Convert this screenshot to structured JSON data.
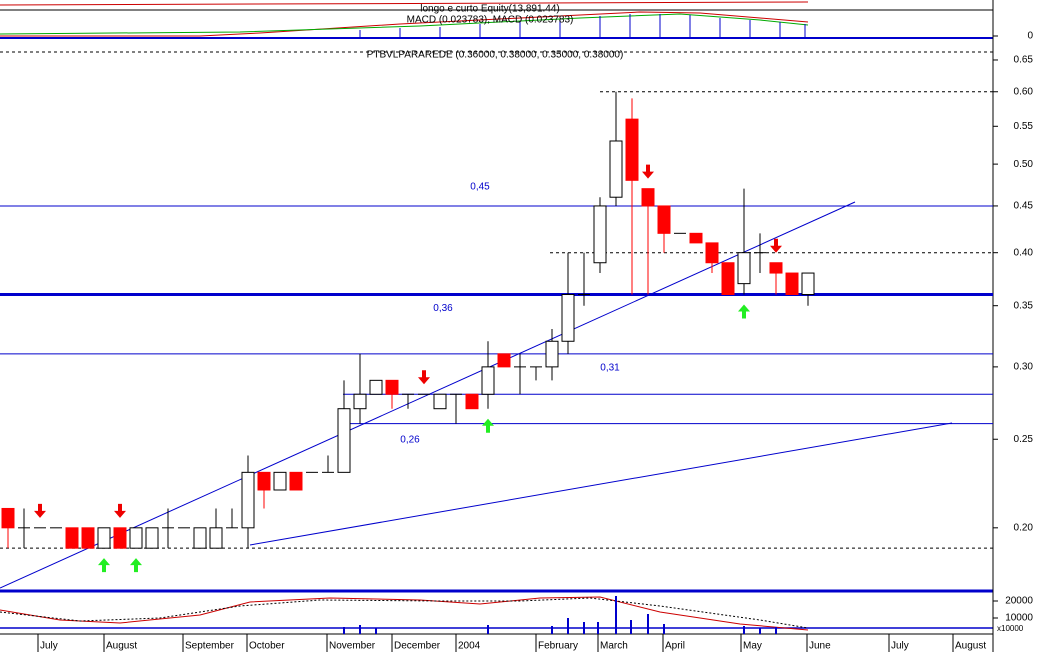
{
  "chart_data": {
    "type": "candlestick",
    "title": "PTBVLPARAREDE (0.36000, 0.38000, 0.35000, 0.38000)",
    "up_color": "#ffffff",
    "down_color": "#ff0000",
    "log_scale": true,
    "open": [
      0.21,
      0.2,
      0.2,
      0.2,
      0.2,
      0.2,
      0.19,
      0.2,
      0.19,
      0.19,
      0.2,
      0.2,
      0.19,
      0.19,
      0.2,
      0.2,
      0.23,
      0.22,
      0.23,
      0.23,
      0.23,
      0.23,
      0.27,
      0.28,
      0.29,
      0.28,
      0.28,
      0.27,
      0.28,
      0.28,
      0.28,
      0.31,
      0.3,
      0.3,
      0.3,
      0.32,
      0.36,
      0.39,
      0.46,
      0.56,
      0.47,
      0.45,
      0.42,
      0.42,
      0.41,
      0.39,
      0.37,
      0.4,
      0.39,
      0.38,
      0.36
    ],
    "high": [
      0.21,
      0.21,
      0.2,
      0.2,
      0.2,
      0.2,
      0.2,
      0.2,
      0.2,
      0.2,
      0.21,
      0.2,
      0.2,
      0.21,
      0.21,
      0.24,
      0.23,
      0.23,
      0.23,
      0.23,
      0.24,
      0.29,
      0.31,
      0.29,
      0.29,
      0.28,
      0.28,
      0.28,
      0.28,
      0.28,
      0.32,
      0.31,
      0.31,
      0.3,
      0.33,
      0.4,
      0.4,
      0.46,
      0.6,
      0.59,
      0.47,
      0.45,
      0.42,
      0.42,
      0.41,
      0.39,
      0.47,
      0.42,
      0.39,
      0.38,
      0.38
    ],
    "low": [
      0.19,
      0.19,
      0.2,
      0.2,
      0.19,
      0.19,
      0.19,
      0.19,
      0.19,
      0.19,
      0.19,
      0.2,
      0.19,
      0.19,
      0.2,
      0.19,
      0.21,
      0.22,
      0.22,
      0.23,
      0.23,
      0.23,
      0.26,
      0.28,
      0.27,
      0.27,
      0.28,
      0.27,
      0.26,
      0.27,
      0.27,
      0.3,
      0.28,
      0.29,
      0.29,
      0.31,
      0.35,
      0.38,
      0.45,
      0.36,
      0.36,
      0.4,
      0.42,
      0.41,
      0.38,
      0.36,
      0.36,
      0.38,
      0.36,
      0.36,
      0.35
    ],
    "close": [
      0.2,
      0.2,
      0.2,
      0.2,
      0.19,
      0.19,
      0.2,
      0.19,
      0.2,
      0.2,
      0.2,
      0.2,
      0.2,
      0.2,
      0.2,
      0.23,
      0.22,
      0.23,
      0.22,
      0.23,
      0.23,
      0.27,
      0.28,
      0.29,
      0.28,
      0.28,
      0.28,
      0.28,
      0.28,
      0.27,
      0.3,
      0.3,
      0.3,
      0.3,
      0.32,
      0.36,
      0.36,
      0.45,
      0.53,
      0.48,
      0.45,
      0.42,
      0.42,
      0.41,
      0.39,
      0.36,
      0.4,
      0.4,
      0.38,
      0.36,
      0.38
    ],
    "ylim": [
      0.171,
      0.675
    ],
    "yticks": [
      {
        "value": 0.2,
        "label": "0.20"
      },
      0.25,
      {
        "value": 0.3,
        "label": "0.30"
      },
      0.35,
      {
        "value": 0.4,
        "label": "0.40"
      },
      0.45,
      {
        "value": 0.5,
        "label": "0.50"
      },
      0.55,
      {
        "value": 0.6,
        "label": "0.60"
      },
      0.65
    ],
    "x_tick_labels": [
      "July",
      "August",
      "September",
      "October",
      "November",
      "December",
      "2004",
      "February",
      "March",
      "April",
      "May",
      "June",
      "July",
      "August"
    ],
    "annotations": [
      {
        "text": "0,45",
        "value": 0.45
      },
      {
        "text": "0,36",
        "value": 0.36
      },
      {
        "text": "0,31",
        "value": 0.31
      },
      {
        "text": "0,26",
        "value": 0.26
      }
    ],
    "reference_lines": [
      {
        "value": 0.45,
        "dashed": false
      },
      {
        "value": 0.36,
        "dashed": false
      },
      {
        "value": 0.31,
        "dashed": false
      },
      {
        "value": 0.28,
        "dashed": false
      },
      {
        "value": 0.26,
        "dashed": false
      },
      {
        "value": 0.19,
        "dashed": true
      },
      {
        "value": 0.4,
        "dashed": true
      },
      {
        "value": 0.6,
        "dashed": true
      }
    ],
    "equity_panel": {
      "title": "longo e curto Equity(13,891.44)",
      "subtitle": "MACD (0.023783), MACD (0.023783)",
      "ylim": [
        -0.01,
        0.04
      ],
      "yticks": [
        0
      ]
    },
    "volume_panel": {
      "ylim": [
        0,
        22000
      ],
      "yticks": [
        20000,
        10000
      ],
      "unit_label": "x10000"
    }
  }
}
